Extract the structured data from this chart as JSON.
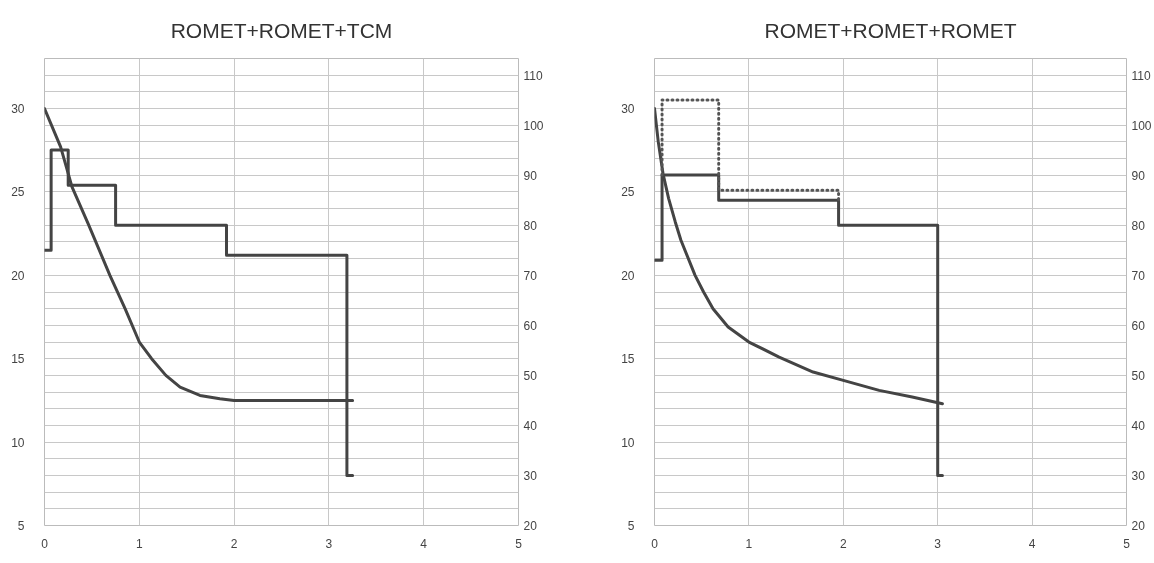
{
  "chart_data": [
    {
      "type": "line",
      "title": "ROMET+ROMET+TCM",
      "xlim": [
        0,
        5
      ],
      "xticks": [
        0,
        1,
        2,
        3,
        4,
        5
      ],
      "ylim": [
        5,
        33
      ],
      "yticks": [
        5,
        {
          "value": 6,
          "label": null
        },
        {
          "value": 7,
          "label": null
        },
        {
          "value": 8,
          "label": null
        },
        {
          "value": 9,
          "label": null
        },
        10,
        {
          "value": 11,
          "label": null
        },
        {
          "value": 12,
          "label": null
        },
        {
          "value": 13,
          "label": null
        },
        {
          "value": 14,
          "label": null
        },
        15,
        {
          "value": 16,
          "label": null
        },
        {
          "value": 17,
          "label": null
        },
        {
          "value": 18,
          "label": null
        },
        {
          "value": 19,
          "label": null
        },
        20,
        {
          "value": 21,
          "label": null
        },
        {
          "value": 22,
          "label": null
        },
        {
          "value": 23,
          "label": null
        },
        {
          "value": 24,
          "label": null
        },
        25,
        {
          "value": 26,
          "label": null
        },
        {
          "value": 27,
          "label": null
        },
        {
          "value": 28,
          "label": null
        },
        {
          "value": 29,
          "label": null
        },
        30,
        {
          "value": 31,
          "label": null
        },
        {
          "value": 32,
          "label": null
        },
        {
          "value": 33,
          "label": null
        }
      ],
      "y2lim": [
        20,
        113.3
      ],
      "y2ticks": [
        20,
        30,
        40,
        50,
        60,
        70,
        80,
        90,
        100,
        110
      ],
      "grid": true,
      "marker": "none",
      "line_style": "solid",
      "series": [
        {
          "color": "#444444",
          "x": [
            0,
            0.17,
            0.29,
            0.46,
            0.69,
            0.85,
            1.0,
            1.13,
            1.28,
            1.43,
            1.64,
            1.85,
            2.0,
            3.25
          ],
          "values": [
            30,
            27.7,
            25.3,
            23.1,
            20,
            18,
            16,
            15,
            14,
            13.3,
            12.8,
            12.6,
            12.5,
            12.5
          ]
        },
        {
          "type": "step",
          "axis": "y2",
          "color": "#444444",
          "x": [
            0,
            0.07,
            0.25,
            0.75,
            1.92,
            3.19,
            3.25
          ],
          "values": [
            75,
            95,
            88,
            80,
            74,
            30,
            30
          ]
        }
      ]
    },
    {
      "type": "line",
      "title": "ROMET+ROMET+ROMET",
      "xlim": [
        0,
        5
      ],
      "xticks": [
        0,
        1,
        2,
        3,
        4,
        5
      ],
      "ylim": [
        5,
        33
      ],
      "yticks": [
        5,
        {
          "value": 6,
          "label": null
        },
        {
          "value": 7,
          "label": null
        },
        {
          "value": 8,
          "label": null
        },
        {
          "value": 9,
          "label": null
        },
        10,
        {
          "value": 11,
          "label": null
        },
        {
          "value": 12,
          "label": null
        },
        {
          "value": 13,
          "label": null
        },
        {
          "value": 14,
          "label": null
        },
        15,
        {
          "value": 16,
          "label": null
        },
        {
          "value": 17,
          "label": null
        },
        {
          "value": 18,
          "label": null
        },
        {
          "value": 19,
          "label": null
        },
        20,
        {
          "value": 21,
          "label": null
        },
        {
          "value": 22,
          "label": null
        },
        {
          "value": 23,
          "label": null
        },
        {
          "value": 24,
          "label": null
        },
        25,
        {
          "value": 26,
          "label": null
        },
        {
          "value": 27,
          "label": null
        },
        {
          "value": 28,
          "label": null
        },
        {
          "value": 29,
          "label": null
        },
        30,
        {
          "value": 31,
          "label": null
        },
        {
          "value": 32,
          "label": null
        },
        {
          "value": 33,
          "label": null
        }
      ],
      "y2lim": [
        20,
        113.3
      ],
      "y2ticks": [
        20,
        30,
        40,
        50,
        60,
        70,
        80,
        90,
        100,
        110
      ],
      "grid": true,
      "marker": "none",
      "line_style": "solid",
      "series": [
        {
          "color": "#444444",
          "x": [
            0,
            0.04,
            0.09,
            0.15,
            0.22,
            0.28,
            0.43,
            0.52,
            0.62,
            0.78,
            1.0,
            1.32,
            1.68,
            2.0,
            2.38,
            2.73,
            3.05
          ],
          "values": [
            30,
            28,
            26.1,
            24.6,
            23.2,
            22.1,
            20,
            19,
            18,
            16.9,
            16,
            15.1,
            14.2,
            13.7,
            13.1,
            12.7,
            12.3
          ]
        },
        {
          "type": "step",
          "axis": "y2",
          "color": "#444444",
          "x": [
            0,
            0.08,
            0.68,
            1.95,
            3.0,
            3.05
          ],
          "values": [
            73,
            90,
            85,
            80,
            30,
            30
          ]
        },
        {
          "type": "step",
          "axis": "y2",
          "color": "#555555",
          "line_style": "dotted",
          "x": [
            0.08,
            0.08,
            0.68,
            1.95
          ],
          "values": [
            90,
            105,
            87,
            85
          ]
        }
      ]
    }
  ]
}
